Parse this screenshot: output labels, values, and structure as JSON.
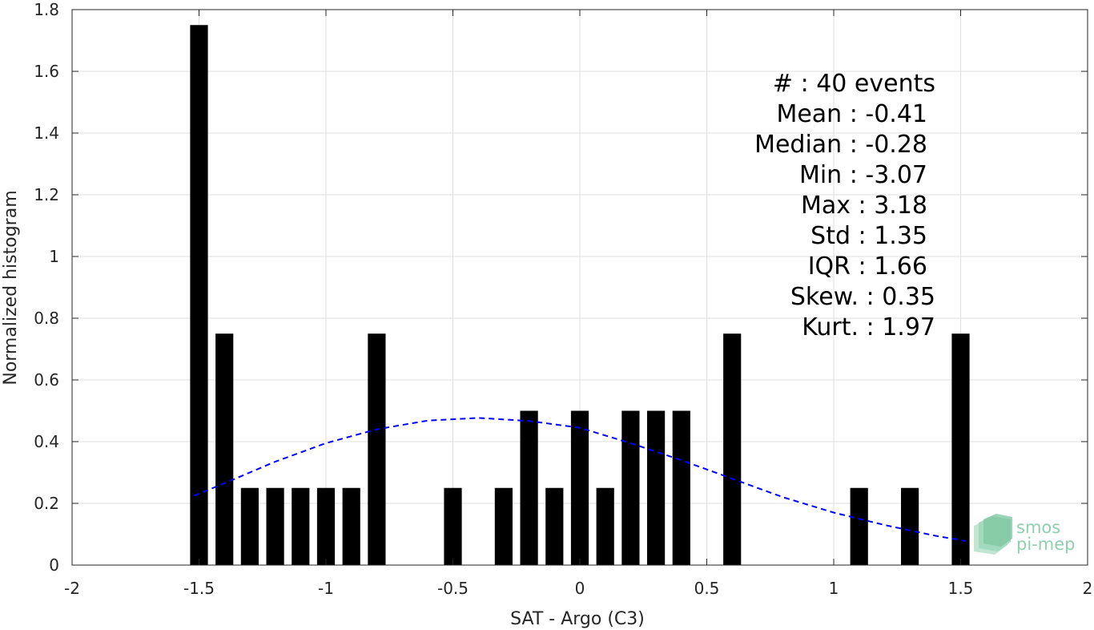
{
  "chart_data": {
    "type": "bar",
    "xlabel": "SAT - Argo (C3)",
    "ylabel": "Normalized histogram",
    "xlim": [
      -2,
      2
    ],
    "ylim": [
      0,
      1.8
    ],
    "x_ticks": [
      -2,
      -1.5,
      -1,
      -0.5,
      0,
      0.5,
      1,
      1.5,
      2
    ],
    "x_tick_labels": [
      "-2",
      "-1.5",
      "-1",
      "-0.5",
      "0",
      "0.5",
      "1",
      "1.5",
      "2"
    ],
    "y_ticks": [
      0,
      0.2,
      0.4,
      0.6,
      0.8,
      1,
      1.2,
      1.4,
      1.6,
      1.8
    ],
    "y_tick_labels": [
      "0",
      "0.2",
      "0.4",
      "0.6",
      "0.8",
      "1",
      "1.2",
      "1.4",
      "1.6",
      "1.8"
    ],
    "grid": true,
    "bar_color": "#000000",
    "bars": [
      {
        "x": -1.5,
        "y": 1.75
      },
      {
        "x": -1.4,
        "y": 0.75
      },
      {
        "x": -1.3,
        "y": 0.25
      },
      {
        "x": -1.2,
        "y": 0.25
      },
      {
        "x": -1.1,
        "y": 0.25
      },
      {
        "x": -1.0,
        "y": 0.25
      },
      {
        "x": -0.9,
        "y": 0.25
      },
      {
        "x": -0.8,
        "y": 0.75
      },
      {
        "x": -0.5,
        "y": 0.25
      },
      {
        "x": -0.3,
        "y": 0.25
      },
      {
        "x": -0.2,
        "y": 0.5
      },
      {
        "x": -0.1,
        "y": 0.25
      },
      {
        "x": 0.0,
        "y": 0.5
      },
      {
        "x": 0.1,
        "y": 0.25
      },
      {
        "x": 0.2,
        "y": 0.5
      },
      {
        "x": 0.3,
        "y": 0.5
      },
      {
        "x": 0.4,
        "y": 0.5
      },
      {
        "x": 0.6,
        "y": 0.75
      },
      {
        "x": 1.1,
        "y": 0.25
      },
      {
        "x": 1.3,
        "y": 0.25
      },
      {
        "x": 1.5,
        "y": 0.75
      }
    ],
    "fit_curve": {
      "style": "dashed",
      "color": "#0000ff",
      "points": [
        [
          -1.52,
          0.225
        ],
        [
          -1.4,
          0.265
        ],
        [
          -1.2,
          0.335
        ],
        [
          -1.0,
          0.395
        ],
        [
          -0.8,
          0.44
        ],
        [
          -0.6,
          0.468
        ],
        [
          -0.4,
          0.477
        ],
        [
          -0.2,
          0.467
        ],
        [
          0.0,
          0.445
        ],
        [
          0.2,
          0.395
        ],
        [
          0.4,
          0.34
        ],
        [
          0.6,
          0.28
        ],
        [
          0.8,
          0.22
        ],
        [
          1.0,
          0.17
        ],
        [
          1.2,
          0.13
        ],
        [
          1.4,
          0.095
        ],
        [
          1.52,
          0.078
        ]
      ]
    }
  },
  "stats": [
    {
      "label": "#",
      "sep": "  : ",
      "value": "40 events"
    },
    {
      "label": "Mean",
      "sep": " : ",
      "value": "-0.41"
    },
    {
      "label": "Median",
      "sep": " : ",
      "value": "-0.28"
    },
    {
      "label": "Min",
      "sep": " : ",
      "value": "-3.07"
    },
    {
      "label": "Max",
      "sep": " : ",
      "value": "3.18"
    },
    {
      "label": "Std",
      "sep": " : ",
      "value": "1.35"
    },
    {
      "label": "IQR",
      "sep": " : ",
      "value": "1.66"
    },
    {
      "label": "Skew.",
      "sep": " : ",
      "value": "0.35"
    },
    {
      "label": "Kurt.",
      "sep": " : ",
      "value": "1.97"
    }
  ],
  "logo": {
    "line1": "smos",
    "line2": "pi-mep",
    "color": "#8fcfae"
  }
}
